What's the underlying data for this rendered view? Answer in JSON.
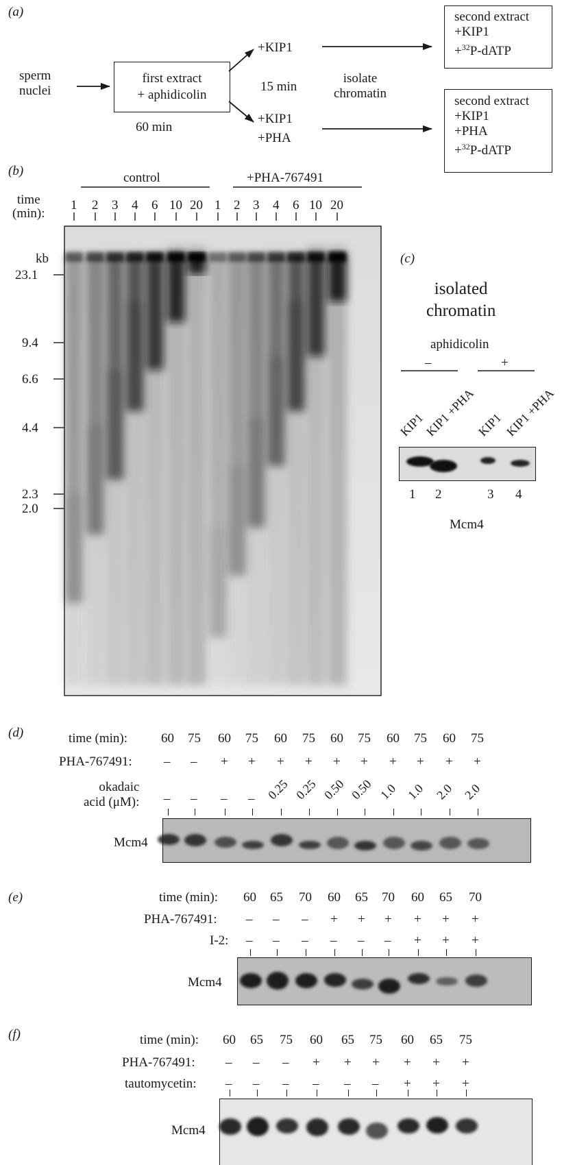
{
  "panel_a": {
    "label": "(a)",
    "start": "sperm\nnuclei",
    "first_extract": "first extract\n+ aphidicolin",
    "first_time": "60 min",
    "branch_kip": "+KIP1",
    "branch_kip_pha": "+KIP1\n+PHA",
    "mid_time": "15 min",
    "isolate": "isolate\nchromatin",
    "second_1": [
      "second extract",
      "+KIP1",
      "+32P-dATP"
    ],
    "second_2": [
      "second extract",
      "+KIP1",
      "+PHA",
      "+32P-dATP"
    ]
  },
  "panel_b": {
    "label": "(b)",
    "group_control": "control",
    "group_pha": "+PHA-767491",
    "time_label": "time\n(min):",
    "times": [
      "1",
      "2",
      "3",
      "4",
      "6",
      "10",
      "20",
      "1",
      "2",
      "3",
      "4",
      "6",
      "10",
      "20"
    ],
    "kb_label": "kb",
    "markers": [
      "23.1",
      "9.4",
      "6.6",
      "4.4",
      "2.3",
      "2.0"
    ]
  },
  "panel_c": {
    "label": "(c)",
    "title": "isolated\nchromatin",
    "treatment": "aphidicolin",
    "minus": "–",
    "plus": "+",
    "lanes": [
      "KIP1",
      "KIP1 +PHA",
      "KIP1",
      "KIP1 +PHA"
    ],
    "numbers": [
      "1",
      "2",
      "3",
      "4"
    ],
    "protein": "Mcm4"
  },
  "panel_d": {
    "label": "(d)",
    "row_time": "time (min):",
    "row_pha": "PHA-767491:",
    "row_oa": "okadaic\nacid (μM):",
    "protein": "Mcm4",
    "times": [
      "60",
      "75",
      "60",
      "75",
      "60",
      "75",
      "60",
      "75",
      "60",
      "75",
      "60",
      "75"
    ],
    "pha": [
      "–",
      "–",
      "+",
      "+",
      "+",
      "+",
      "+",
      "+",
      "+",
      "+",
      "+",
      "+"
    ],
    "oa": [
      "–",
      "–",
      "–",
      "–",
      "0.25",
      "0.25",
      "0.50",
      "0.50",
      "1.0",
      "1.0",
      "2.0",
      "2.0"
    ]
  },
  "panel_e": {
    "label": "(e)",
    "row_time": "time (min):",
    "row_pha": "PHA-767491:",
    "row_i2": "I-2:",
    "protein": "Mcm4",
    "times": [
      "60",
      "65",
      "70",
      "60",
      "65",
      "70",
      "60",
      "65",
      "70"
    ],
    "pha": [
      "–",
      "–",
      "–",
      "+",
      "+",
      "+",
      "+",
      "+",
      "+"
    ],
    "i2": [
      "–",
      "–",
      "–",
      "–",
      "–",
      "–",
      "+",
      "+",
      "+"
    ]
  },
  "panel_f": {
    "label": "(f)",
    "row_time": "time (min):",
    "row_pha": "PHA-767491:",
    "row_tm": "tautomycetin:",
    "protein": "Mcm4",
    "times": [
      "60",
      "65",
      "75",
      "60",
      "65",
      "75",
      "60",
      "65",
      "75"
    ],
    "pha": [
      "–",
      "–",
      "–",
      "+",
      "+",
      "+",
      "+",
      "+",
      "+"
    ],
    "tm": [
      "–",
      "–",
      "–",
      "–",
      "–",
      "–",
      "+",
      "+",
      "+"
    ]
  }
}
